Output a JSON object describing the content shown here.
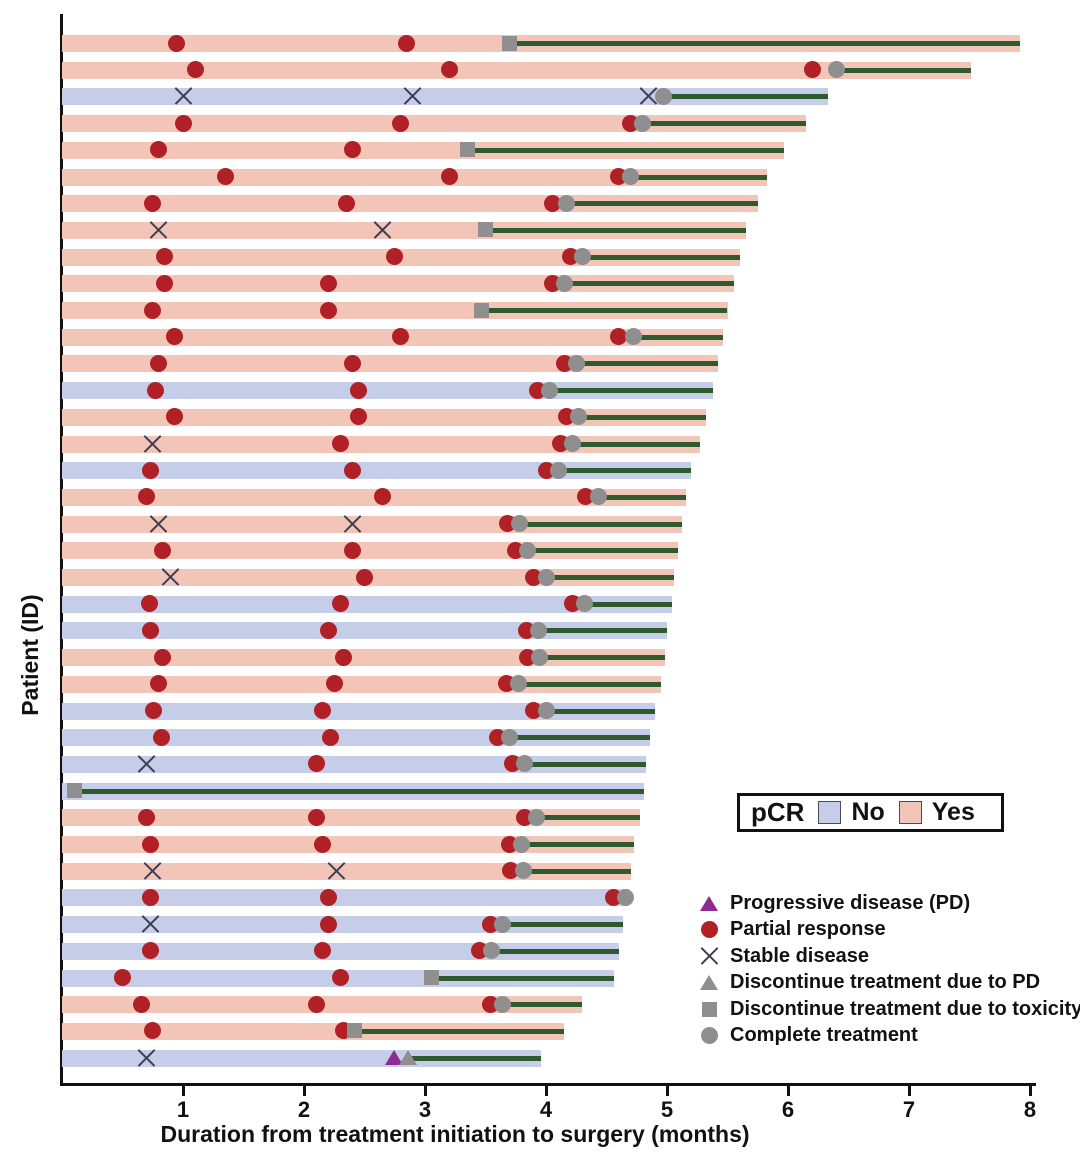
{
  "figure": {
    "ylabel": "Patient (ID)",
    "xlabel": "Duration from treatment initiation to surgery (months)"
  },
  "pcr_legend": {
    "title": "pCR",
    "items": [
      {
        "label": "No",
        "color": "#c5cde8"
      },
      {
        "label": "Yes",
        "color": "#f2c5b8"
      }
    ]
  },
  "marker_legend": [
    {
      "type": "pd",
      "label": "Progressive disease (PD)"
    },
    {
      "type": "pr",
      "label": "Partial response"
    },
    {
      "type": "sd",
      "label": "Stable disease"
    },
    {
      "type": "dpd",
      "label": "Discontinue treatment due to PD"
    },
    {
      "type": "tox",
      "label": "Discontinue treatment due to toxicity"
    },
    {
      "type": "comp",
      "label": "Complete treatment"
    }
  ],
  "colors": {
    "pcr_yes_bar": "#f2c5b8",
    "pcr_no_bar": "#c5cde8",
    "partial_response": "#b02025",
    "gray_marker": "#8f8f8f",
    "treatment_line": "#2d5b2d",
    "progressive_disease": "#8d2b90",
    "axis": "#111111"
  },
  "chart_data": {
    "type": "swimmer",
    "xlabel": "Duration from treatment initiation to surgery (months)",
    "ylabel": "Patient (ID)",
    "x_axis": {
      "min": 0,
      "max": 8,
      "ticks": [
        1,
        2,
        3,
        4,
        5,
        6,
        7,
        8
      ]
    },
    "event_types": {
      "pr": "Partial response",
      "sd": "Stable disease",
      "pd": "Progressive disease (PD)",
      "dpd": "Discontinue treatment due to PD",
      "tox": "Discontinue treatment due to toxicity",
      "comp": "Complete treatment"
    },
    "patients": [
      {
        "pcr": "Yes",
        "end": 7.92,
        "line_start": 3.7,
        "events": [
          [
            "pr",
            0.95
          ],
          [
            "pr",
            2.85
          ],
          [
            "tox",
            3.7
          ]
        ]
      },
      {
        "pcr": "Yes",
        "end": 7.51,
        "line_start": 6.4,
        "events": [
          [
            "pr",
            1.1
          ],
          [
            "pr",
            3.2
          ],
          [
            "pr",
            6.2
          ],
          [
            "comp",
            6.4
          ]
        ]
      },
      {
        "pcr": "No",
        "end": 6.33,
        "line_start": 4.97,
        "events": [
          [
            "sd",
            1.0
          ],
          [
            "sd",
            2.9
          ],
          [
            "sd",
            4.85
          ],
          [
            "comp",
            4.97
          ]
        ]
      },
      {
        "pcr": "Yes",
        "end": 6.15,
        "line_start": 4.8,
        "events": [
          [
            "pr",
            1.0
          ],
          [
            "pr",
            2.8
          ],
          [
            "pr",
            4.7
          ],
          [
            "comp",
            4.8
          ]
        ]
      },
      {
        "pcr": "Yes",
        "end": 5.97,
        "line_start": 3.35,
        "events": [
          [
            "pr",
            0.8
          ],
          [
            "pr",
            2.4
          ],
          [
            "tox",
            3.35
          ]
        ]
      },
      {
        "pcr": "Yes",
        "end": 5.83,
        "line_start": 4.7,
        "events": [
          [
            "pr",
            1.35
          ],
          [
            "pr",
            3.2
          ],
          [
            "pr",
            4.6
          ],
          [
            "comp",
            4.7
          ]
        ]
      },
      {
        "pcr": "Yes",
        "end": 5.75,
        "line_start": 4.17,
        "events": [
          [
            "pr",
            0.75
          ],
          [
            "pr",
            2.35
          ],
          [
            "pr",
            4.05
          ],
          [
            "comp",
            4.17
          ]
        ]
      },
      {
        "pcr": "Yes",
        "end": 5.65,
        "line_start": 3.5,
        "events": [
          [
            "sd",
            0.8
          ],
          [
            "sd",
            2.65
          ],
          [
            "tox",
            3.5
          ]
        ]
      },
      {
        "pcr": "Yes",
        "end": 5.6,
        "line_start": 4.3,
        "events": [
          [
            "pr",
            0.85
          ],
          [
            "pr",
            2.75
          ],
          [
            "pr",
            4.2
          ],
          [
            "comp",
            4.3
          ]
        ]
      },
      {
        "pcr": "Yes",
        "end": 5.55,
        "line_start": 4.15,
        "events": [
          [
            "pr",
            0.85
          ],
          [
            "pr",
            2.2
          ],
          [
            "pr",
            4.05
          ],
          [
            "comp",
            4.15
          ]
        ]
      },
      {
        "pcr": "Yes",
        "end": 5.5,
        "line_start": 3.47,
        "events": [
          [
            "pr",
            0.75
          ],
          [
            "pr",
            2.2
          ],
          [
            "tox",
            3.47
          ]
        ]
      },
      {
        "pcr": "Yes",
        "end": 5.46,
        "line_start": 4.72,
        "events": [
          [
            "pr",
            0.93
          ],
          [
            "pr",
            2.8
          ],
          [
            "pr",
            4.6
          ],
          [
            "comp",
            4.72
          ]
        ]
      },
      {
        "pcr": "Yes",
        "end": 5.42,
        "line_start": 4.25,
        "events": [
          [
            "pr",
            0.8
          ],
          [
            "pr",
            2.4
          ],
          [
            "pr",
            4.15
          ],
          [
            "comp",
            4.25
          ]
        ]
      },
      {
        "pcr": "No",
        "end": 5.38,
        "line_start": 4.03,
        "events": [
          [
            "pr",
            0.77
          ],
          [
            "pr",
            2.45
          ],
          [
            "pr",
            3.93
          ],
          [
            "comp",
            4.03
          ]
        ]
      },
      {
        "pcr": "Yes",
        "end": 5.32,
        "line_start": 4.27,
        "events": [
          [
            "pr",
            0.93
          ],
          [
            "pr",
            2.45
          ],
          [
            "pr",
            4.17
          ],
          [
            "comp",
            4.27
          ]
        ]
      },
      {
        "pcr": "Yes",
        "end": 5.27,
        "line_start": 4.22,
        "events": [
          [
            "sd",
            0.75
          ],
          [
            "pr",
            2.3
          ],
          [
            "pr",
            4.12
          ],
          [
            "comp",
            4.22
          ]
        ]
      },
      {
        "pcr": "No",
        "end": 5.2,
        "line_start": 4.1,
        "events": [
          [
            "pr",
            0.73
          ],
          [
            "pr",
            2.4
          ],
          [
            "pr",
            4.0
          ],
          [
            "comp",
            4.1
          ]
        ]
      },
      {
        "pcr": "Yes",
        "end": 5.16,
        "line_start": 4.43,
        "events": [
          [
            "pr",
            0.7
          ],
          [
            "pr",
            2.65
          ],
          [
            "pr",
            4.33
          ],
          [
            "comp",
            4.43
          ]
        ]
      },
      {
        "pcr": "Yes",
        "end": 5.12,
        "line_start": 3.78,
        "events": [
          [
            "sd",
            0.8
          ],
          [
            "sd",
            2.4
          ],
          [
            "pr",
            3.68
          ],
          [
            "comp",
            3.78
          ]
        ]
      },
      {
        "pcr": "Yes",
        "end": 5.09,
        "line_start": 3.85,
        "events": [
          [
            "pr",
            0.83
          ],
          [
            "pr",
            2.4
          ],
          [
            "pr",
            3.75
          ],
          [
            "comp",
            3.85
          ]
        ]
      },
      {
        "pcr": "Yes",
        "end": 5.06,
        "line_start": 4.0,
        "events": [
          [
            "sd",
            0.9
          ],
          [
            "pr",
            2.5
          ],
          [
            "pr",
            3.9
          ],
          [
            "comp",
            4.0
          ]
        ]
      },
      {
        "pcr": "No",
        "end": 5.04,
        "line_start": 4.32,
        "events": [
          [
            "pr",
            0.72
          ],
          [
            "pr",
            2.3
          ],
          [
            "pr",
            4.22
          ],
          [
            "comp",
            4.32
          ]
        ]
      },
      {
        "pcr": "No",
        "end": 5.0,
        "line_start": 3.94,
        "events": [
          [
            "pr",
            0.73
          ],
          [
            "pr",
            2.2
          ],
          [
            "pr",
            3.84
          ],
          [
            "comp",
            3.94
          ]
        ]
      },
      {
        "pcr": "Yes",
        "end": 4.98,
        "line_start": 3.95,
        "events": [
          [
            "pr",
            0.83
          ],
          [
            "pr",
            2.33
          ],
          [
            "pr",
            3.85
          ],
          [
            "comp",
            3.95
          ]
        ]
      },
      {
        "pcr": "Yes",
        "end": 4.95,
        "line_start": 3.77,
        "events": [
          [
            "pr",
            0.8
          ],
          [
            "pr",
            2.25
          ],
          [
            "pr",
            3.67
          ],
          [
            "comp",
            3.77
          ]
        ]
      },
      {
        "pcr": "No",
        "end": 4.9,
        "line_start": 4.0,
        "events": [
          [
            "pr",
            0.76
          ],
          [
            "pr",
            2.15
          ],
          [
            "pr",
            3.9
          ],
          [
            "comp",
            4.0
          ]
        ]
      },
      {
        "pcr": "No",
        "end": 4.86,
        "line_start": 3.7,
        "events": [
          [
            "pr",
            0.82
          ],
          [
            "pr",
            2.22
          ],
          [
            "pr",
            3.6
          ],
          [
            "comp",
            3.7
          ]
        ]
      },
      {
        "pcr": "No",
        "end": 4.83,
        "line_start": 3.82,
        "events": [
          [
            "sd",
            0.7
          ],
          [
            "pr",
            2.1
          ],
          [
            "pr",
            3.72
          ],
          [
            "comp",
            3.82
          ]
        ]
      },
      {
        "pcr": "No",
        "end": 4.81,
        "line_start": 0.1,
        "events": [
          [
            "tox",
            0.1
          ]
        ]
      },
      {
        "pcr": "Yes",
        "end": 4.78,
        "line_start": 3.92,
        "events": [
          [
            "pr",
            0.7
          ],
          [
            "pr",
            2.1
          ],
          [
            "pr",
            3.82
          ],
          [
            "comp",
            3.92
          ]
        ]
      },
      {
        "pcr": "Yes",
        "end": 4.73,
        "line_start": 3.8,
        "events": [
          [
            "pr",
            0.73
          ],
          [
            "pr",
            2.15
          ],
          [
            "pr",
            3.7
          ],
          [
            "comp",
            3.8
          ]
        ]
      },
      {
        "pcr": "Yes",
        "end": 4.7,
        "line_start": 3.81,
        "events": [
          [
            "sd",
            0.75
          ],
          [
            "sd",
            2.27
          ],
          [
            "pr",
            3.71
          ],
          [
            "comp",
            3.81
          ]
        ]
      },
      {
        "pcr": "No",
        "end": 4.69,
        "line_start": 4.66,
        "events": [
          [
            "pr",
            0.73
          ],
          [
            "pr",
            2.2
          ],
          [
            "pr",
            4.56
          ],
          [
            "comp",
            4.66
          ]
        ]
      },
      {
        "pcr": "No",
        "end": 4.64,
        "line_start": 3.64,
        "events": [
          [
            "sd",
            0.73
          ],
          [
            "pr",
            2.2
          ],
          [
            "pr",
            3.54
          ],
          [
            "comp",
            3.64
          ]
        ]
      },
      {
        "pcr": "No",
        "end": 4.6,
        "line_start": 3.55,
        "events": [
          [
            "pr",
            0.73
          ],
          [
            "pr",
            2.15
          ],
          [
            "pr",
            3.45
          ],
          [
            "comp",
            3.55
          ]
        ]
      },
      {
        "pcr": "No",
        "end": 4.56,
        "line_start": 3.05,
        "events": [
          [
            "pr",
            0.5
          ],
          [
            "pr",
            2.3
          ],
          [
            "tox",
            3.05
          ]
        ]
      },
      {
        "pcr": "Yes",
        "end": 4.3,
        "line_start": 3.64,
        "events": [
          [
            "pr",
            0.66
          ],
          [
            "pr",
            2.1
          ],
          [
            "pr",
            3.54
          ],
          [
            "comp",
            3.64
          ]
        ]
      },
      {
        "pcr": "Yes",
        "end": 4.15,
        "line_start": 2.42,
        "events": [
          [
            "pr",
            0.75
          ],
          [
            "pr",
            2.33
          ],
          [
            "tox",
            2.42
          ]
        ]
      },
      {
        "pcr": "No",
        "end": 3.96,
        "line_start": 2.86,
        "events": [
          [
            "sd",
            0.7
          ],
          [
            "pd",
            2.74
          ],
          [
            "dpd",
            2.86
          ]
        ]
      }
    ]
  }
}
